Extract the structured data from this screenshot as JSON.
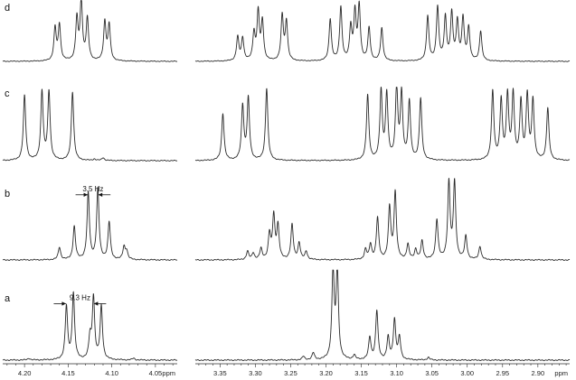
{
  "chart_data": {
    "type": "line",
    "panels": [
      {
        "name": "left",
        "xlim": [
          4.225,
          4.025
        ]
      },
      {
        "name": "right",
        "xlim": [
          3.385,
          2.855
        ]
      }
    ],
    "x_ticks": {
      "left": [
        4.2,
        4.15,
        4.1,
        4.05
      ],
      "right": [
        3.35,
        3.3,
        3.25,
        3.2,
        3.15,
        3.1,
        3.05,
        3.0,
        2.95,
        2.9
      ]
    },
    "x_tick_labels": {
      "left": [
        "4.20",
        "4.15",
        "4.10",
        "4.05"
      ],
      "right": [
        "3.35",
        "3.30",
        "3.25",
        "3.20",
        "3.15",
        "3.10",
        "3.05",
        "3.00",
        "2.95",
        "2.90"
      ]
    },
    "xlabel": "ppm",
    "series": [
      {
        "name": "d",
        "peaks": [
          [
            4.165,
            0.55
          ],
          [
            4.16,
            0.6
          ],
          [
            4.14,
            0.7
          ],
          [
            4.135,
            1.0
          ],
          [
            4.128,
            0.7
          ],
          [
            4.108,
            0.65
          ],
          [
            4.103,
            0.6
          ],
          [
            3.325,
            0.4
          ],
          [
            3.318,
            0.38
          ],
          [
            3.302,
            0.45
          ],
          [
            3.296,
            0.8
          ],
          [
            3.29,
            0.65
          ],
          [
            3.262,
            0.75
          ],
          [
            3.256,
            0.65
          ],
          [
            3.194,
            0.7
          ],
          [
            3.179,
            0.9
          ],
          [
            3.165,
            0.55
          ],
          [
            3.159,
            0.78
          ],
          [
            3.153,
            0.9
          ],
          [
            3.139,
            0.55
          ],
          [
            3.121,
            0.55
          ],
          [
            3.056,
            0.75
          ],
          [
            3.042,
            0.9
          ],
          [
            3.031,
            0.72
          ],
          [
            3.022,
            0.78
          ],
          [
            3.014,
            0.65
          ],
          [
            3.006,
            0.7
          ],
          [
            2.998,
            0.55
          ],
          [
            2.981,
            0.5
          ]
        ]
      },
      {
        "name": "c",
        "peaks": [
          [
            4.2,
            0.9
          ],
          [
            4.18,
            0.95
          ],
          [
            4.172,
            0.95
          ],
          [
            4.145,
            0.95
          ],
          [
            4.12,
            0.02
          ],
          [
            4.11,
            0.04
          ],
          [
            3.346,
            0.65
          ],
          [
            3.318,
            0.75
          ],
          [
            3.31,
            0.85
          ],
          [
            3.284,
            1.0
          ],
          [
            3.141,
            0.9
          ],
          [
            3.122,
            0.95
          ],
          [
            3.114,
            0.9
          ],
          [
            3.1,
            1.0
          ],
          [
            3.093,
            0.9
          ],
          [
            3.082,
            0.8
          ],
          [
            3.066,
            0.85
          ],
          [
            2.964,
            0.95
          ],
          [
            2.952,
            0.82
          ],
          [
            2.943,
            0.88
          ],
          [
            2.935,
            0.9
          ],
          [
            2.924,
            0.8
          ],
          [
            2.915,
            0.88
          ],
          [
            2.907,
            0.82
          ],
          [
            2.886,
            0.72
          ]
        ]
      },
      {
        "name": "b",
        "peaks": [
          [
            4.16,
            0.15
          ],
          [
            4.143,
            0.4
          ],
          [
            4.127,
            0.8
          ],
          [
            4.116,
            0.85
          ],
          [
            4.103,
            0.45
          ],
          [
            4.086,
            0.15
          ],
          [
            4.083,
            0.1
          ],
          [
            3.311,
            0.1
          ],
          [
            3.303,
            0.08
          ],
          [
            3.292,
            0.13
          ],
          [
            3.28,
            0.3
          ],
          [
            3.274,
            0.52
          ],
          [
            3.268,
            0.4
          ],
          [
            3.248,
            0.42
          ],
          [
            3.238,
            0.2
          ],
          [
            3.228,
            0.1
          ],
          [
            3.144,
            0.12
          ],
          [
            3.137,
            0.18
          ],
          [
            3.127,
            0.5
          ],
          [
            3.11,
            0.62
          ],
          [
            3.102,
            0.8
          ],
          [
            3.084,
            0.18
          ],
          [
            3.073,
            0.12
          ],
          [
            3.064,
            0.22
          ],
          [
            3.043,
            0.48
          ],
          [
            3.026,
            0.92
          ],
          [
            3.018,
            0.92
          ],
          [
            3.002,
            0.28
          ],
          [
            2.982,
            0.16
          ]
        ]
      },
      {
        "name": "a",
        "peaks": [
          [
            4.195,
            0.02
          ],
          [
            4.152,
            0.6
          ],
          [
            4.144,
            0.75
          ],
          [
            4.125,
            0.24
          ],
          [
            4.121,
            0.7
          ],
          [
            4.112,
            0.6
          ],
          [
            4.075,
            0.02
          ],
          [
            3.232,
            0.04
          ],
          [
            3.218,
            0.08
          ],
          [
            3.19,
            1.0
          ],
          [
            3.184,
            1.0
          ],
          [
            3.16,
            0.05
          ],
          [
            3.138,
            0.25
          ],
          [
            3.128,
            0.55
          ],
          [
            3.112,
            0.25
          ],
          [
            3.103,
            0.45
          ],
          [
            3.096,
            0.25
          ],
          [
            3.055,
            0.03
          ]
        ]
      }
    ],
    "annotations": [
      {
        "series": "b",
        "text": "3.5 Hz",
        "between": [
          4.127,
          4.116
        ]
      },
      {
        "series": "a",
        "text": "9.3 Hz",
        "between": [
          4.152,
          4.121
        ]
      }
    ],
    "grid": false
  }
}
